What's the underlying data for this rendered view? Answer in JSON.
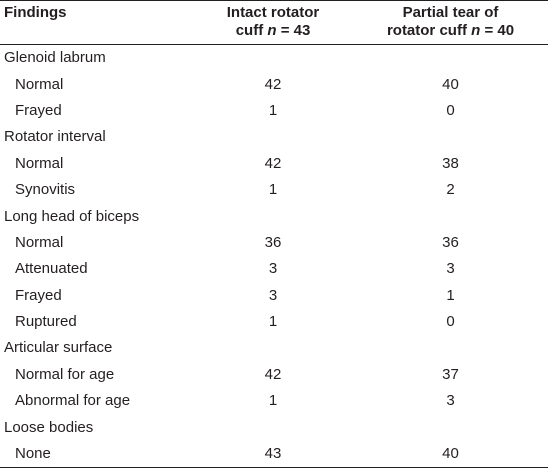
{
  "header": {
    "col1": "Findings",
    "col2_line1": "Intact rotator",
    "col2_line2_prefix": "cuff ",
    "col2_n": "n",
    "col2_line2_suffix": " = 43",
    "col3_line1": "Partial tear of",
    "col3_line2_prefix": "rotator cuff ",
    "col3_n": "n",
    "col3_line2_suffix": " = 40"
  },
  "rows": [
    {
      "type": "category",
      "label": "Glenoid labrum"
    },
    {
      "type": "item",
      "label": "Normal",
      "intact": "42",
      "partial": "40"
    },
    {
      "type": "item",
      "label": "Frayed",
      "intact": "1",
      "partial": "0"
    },
    {
      "type": "category",
      "label": "Rotator interval"
    },
    {
      "type": "item",
      "label": "Normal",
      "intact": "42",
      "partial": "38"
    },
    {
      "type": "item",
      "label": "Synovitis",
      "intact": "1",
      "partial": "2"
    },
    {
      "type": "category",
      "label": "Long head of biceps"
    },
    {
      "type": "item",
      "label": "Normal",
      "intact": "36",
      "partial": "36"
    },
    {
      "type": "item",
      "label": "Attenuated",
      "intact": "3",
      "partial": "3"
    },
    {
      "type": "item",
      "label": "Frayed",
      "intact": "3",
      "partial": "1"
    },
    {
      "type": "item",
      "label": "Ruptured",
      "intact": "1",
      "partial": "0"
    },
    {
      "type": "category",
      "label": "Articular surface"
    },
    {
      "type": "item",
      "label": "Normal for age",
      "intact": "42",
      "partial": "37"
    },
    {
      "type": "item",
      "label": "Abnormal for age",
      "intact": "1",
      "partial": "3"
    },
    {
      "type": "category",
      "label": "Loose bodies"
    },
    {
      "type": "item",
      "label": "None",
      "intact": "43",
      "partial": "40"
    }
  ]
}
